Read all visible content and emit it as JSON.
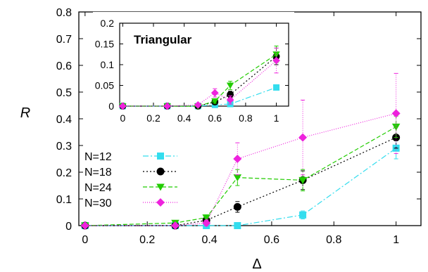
{
  "chart_data": [
    {
      "type": "line",
      "xlabel": "Δ",
      "ylabel": "R",
      "xlim": [
        -0.02,
        1.08
      ],
      "ylim": [
        0,
        0.8
      ],
      "xticks": [
        0,
        0.2,
        0.4,
        0.6,
        0.8,
        1
      ],
      "xtick_labels": [
        "0",
        "0.2",
        "0.4",
        "0.6",
        "0.8",
        "1"
      ],
      "yticks": [
        0,
        0.1,
        0.2,
        0.3,
        0.4,
        0.5,
        0.6,
        0.7,
        0.8
      ],
      "ytick_labels": [
        "0",
        "0.1",
        "0.2",
        "0.3",
        "0.4",
        "0.5",
        "0.6",
        "0.7",
        "0.8"
      ],
      "legend_position": "left",
      "series": [
        {
          "name": "N=12",
          "color": "#33ddee",
          "marker": "square",
          "dash": "8,3,2,3",
          "x": [
            0,
            0.29,
            0.39,
            0.49,
            0.7,
            1.0
          ],
          "y": [
            0,
            0,
            0,
            0,
            0.04,
            0.29
          ],
          "err": [
            0,
            0,
            0,
            0,
            0.015,
            0.04
          ]
        },
        {
          "name": "N=18",
          "color": "#000000",
          "marker": "circle",
          "dash": "2,3",
          "x": [
            0,
            0.29,
            0.39,
            0.49,
            0.7,
            1.0
          ],
          "y": [
            0,
            0,
            0.02,
            0.07,
            0.17,
            0.33
          ],
          "err": [
            0,
            0,
            0.01,
            0.02,
            0.035,
            0.04
          ]
        },
        {
          "name": "N=24",
          "color": "#22cc00",
          "marker": "triangle-down",
          "dash": "6,3",
          "x": [
            0,
            0.29,
            0.39,
            0.49,
            0.7,
            1.0
          ],
          "y": [
            0,
            0.01,
            0.03,
            0.18,
            0.17,
            0.37
          ],
          "err": [
            0,
            0,
            0.01,
            0.03,
            0.04,
            0.04
          ]
        },
        {
          "name": "N=30",
          "color": "#ee22dd",
          "marker": "diamond",
          "dash": "1,2",
          "x": [
            0,
            0.29,
            0.39,
            0.49,
            0.7,
            1.0
          ],
          "y": [
            0,
            0,
            0.01,
            0.25,
            0.33,
            0.42
          ],
          "err": [
            0,
            0,
            0.01,
            0.06,
            0.14,
            0.15
          ]
        }
      ]
    },
    {
      "type": "line",
      "title": "Triangular",
      "xlim": [
        -0.02,
        1.08
      ],
      "ylim": [
        0,
        0.2
      ],
      "xticks": [
        0,
        0.2,
        0.4,
        0.6,
        0.8,
        1
      ],
      "xtick_labels": [
        "0",
        "0.2",
        "0.4",
        "0.6",
        "0.8",
        "1"
      ],
      "yticks": [
        0,
        0.05,
        0.1,
        0.15,
        0.2
      ],
      "ytick_labels": [
        "0",
        "0.05",
        "0.1",
        "0.15",
        "0.2"
      ],
      "series": [
        {
          "name": "N=12",
          "color": "#33ddee",
          "marker": "square",
          "dash": "8,3,2,3",
          "x": [
            0,
            0.29,
            0.49,
            0.6,
            0.7,
            1.0
          ],
          "y": [
            0,
            0,
            0,
            0.003,
            0.005,
            0.045
          ],
          "err": [
            0,
            0,
            0,
            0,
            0,
            0
          ]
        },
        {
          "name": "N=18",
          "color": "#000000",
          "marker": "circle",
          "dash": "2,3",
          "x": [
            0,
            0.29,
            0.49,
            0.6,
            0.7,
            1.0
          ],
          "y": [
            0,
            0,
            0,
            0.01,
            0.028,
            0.12
          ],
          "err": [
            0,
            0,
            0,
            0.005,
            0.008,
            0.02
          ]
        },
        {
          "name": "N=24",
          "color": "#22cc00",
          "marker": "triangle-down",
          "dash": "6,3",
          "x": [
            0,
            0.29,
            0.49,
            0.6,
            0.7,
            1.0
          ],
          "y": [
            0,
            0,
            0,
            0.012,
            0.05,
            0.125
          ],
          "err": [
            0,
            0,
            0,
            0.005,
            0.01,
            0.02
          ]
        },
        {
          "name": "N=30",
          "color": "#ee22dd",
          "marker": "diamond",
          "dash": "1,2",
          "x": [
            0,
            0.29,
            0.49,
            0.6,
            0.7,
            1.0
          ],
          "y": [
            0,
            0,
            0.003,
            0.032,
            0.015,
            0.11
          ],
          "err": [
            0,
            0,
            0,
            0.01,
            0.01,
            0.03
          ]
        }
      ]
    }
  ]
}
